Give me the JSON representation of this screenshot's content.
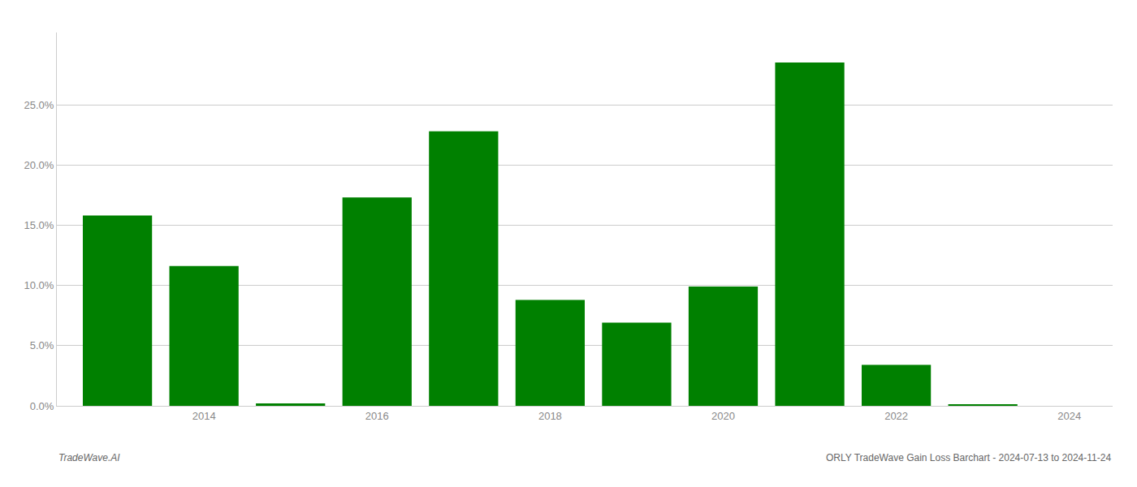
{
  "chart_data": {
    "type": "bar",
    "x": [
      2013,
      2014,
      2015,
      2016,
      2017,
      2018,
      2019,
      2020,
      2021,
      2022,
      2023
    ],
    "values": [
      0.158,
      0.116,
      0.002,
      0.173,
      0.228,
      0.088,
      0.069,
      0.099,
      0.285,
      0.034,
      0.001
    ],
    "color": "#008000",
    "xlim": [
      2012.3,
      2024.5
    ],
    "xticks": [
      2014,
      2016,
      2018,
      2020,
      2022,
      2024
    ],
    "ylim": [
      0,
      0.31
    ],
    "yticks": [
      {
        "value": 0.0,
        "label": "0.0%"
      },
      {
        "value": 0.05,
        "label": "5.0%"
      },
      {
        "value": 0.1,
        "label": "10.0%"
      },
      {
        "value": 0.15,
        "label": "15.0%"
      },
      {
        "value": 0.2,
        "label": "20.0%"
      },
      {
        "value": 0.25,
        "label": "25.0%"
      }
    ],
    "grid": true,
    "annotations": [
      "TradeWave.AI",
      "ORLY TradeWave Gain Loss Barchart - 2024-07-13 to 2024-11-24"
    ]
  }
}
